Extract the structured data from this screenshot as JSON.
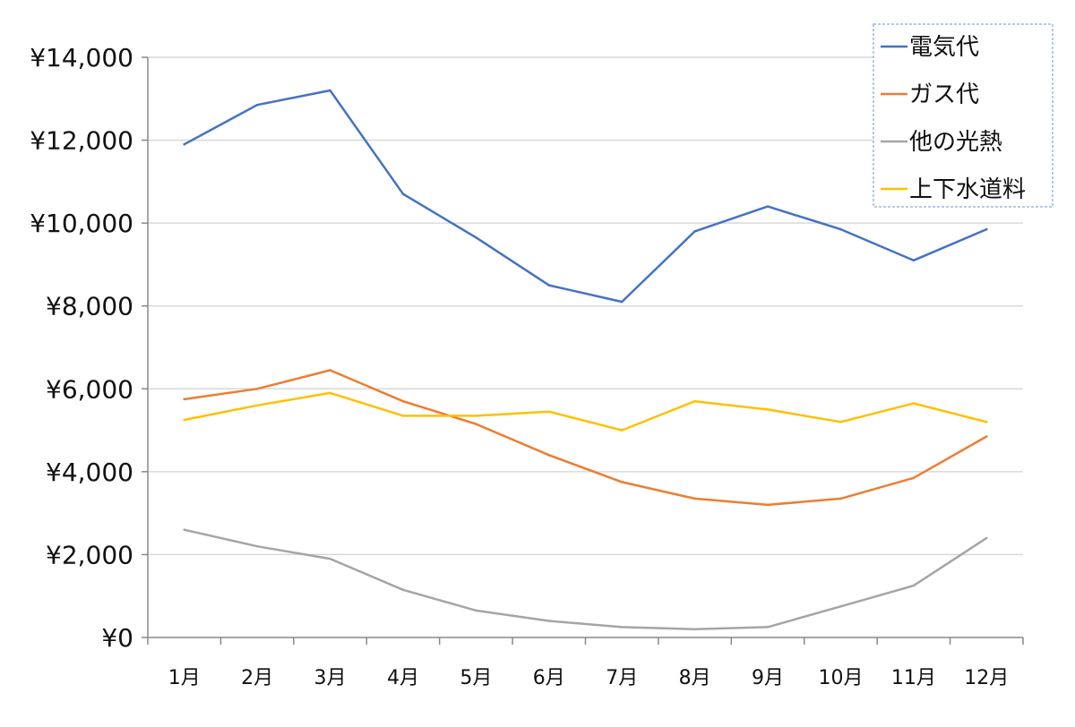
{
  "chart_data": {
    "type": "line",
    "title": "",
    "xlabel": "",
    "ylabel": "",
    "categories": [
      "1月",
      "2月",
      "3月",
      "4月",
      "5月",
      "6月",
      "7月",
      "8月",
      "9月",
      "10月",
      "11月",
      "12月"
    ],
    "ylim": [
      0,
      14000
    ],
    "yticks": [
      0,
      2000,
      4000,
      6000,
      8000,
      10000,
      12000,
      14000
    ],
    "ytick_labels": [
      "¥0",
      "¥2,000",
      "¥4,000",
      "¥6,000",
      "¥8,000",
      "¥10,000",
      "¥12,000",
      "¥14,000"
    ],
    "grid": true,
    "legend_position": "top-right",
    "series": [
      {
        "name": "電気代",
        "color": "#4472C4",
        "values": [
          11900,
          12850,
          13200,
          10700,
          9650,
          8500,
          8100,
          9800,
          10400,
          9850,
          9100,
          9850
        ]
      },
      {
        "name": "ガス代",
        "color": "#ED7D31",
        "values": [
          5750,
          6000,
          6450,
          5700,
          5150,
          4400,
          3750,
          3350,
          3200,
          3350,
          3850,
          4850
        ]
      },
      {
        "name": "他の光熱",
        "color": "#A5A5A5",
        "values": [
          2600,
          2200,
          1900,
          1150,
          650,
          400,
          250,
          200,
          250,
          750,
          1250,
          2400
        ]
      },
      {
        "name": "上下水道料",
        "color": "#FFC000",
        "values": [
          5250,
          5600,
          5900,
          5350,
          5350,
          5450,
          5000,
          5700,
          5500,
          5200,
          5650,
          5200
        ]
      }
    ]
  }
}
